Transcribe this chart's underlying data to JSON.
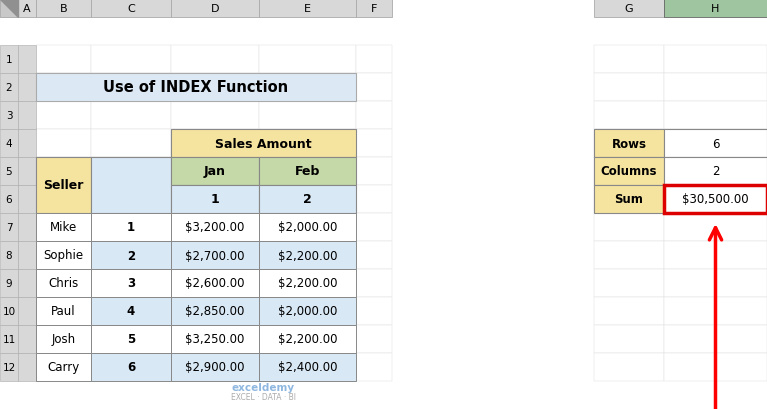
{
  "title": "Use of INDEX Function",
  "col_headers": [
    "A",
    "B",
    "C",
    "D",
    "E",
    "F",
    "G",
    "H"
  ],
  "sellers": [
    "Mike",
    "Sophie",
    "Chris",
    "Paul",
    "Josh",
    "Carry"
  ],
  "row_nums": [
    "1",
    "2",
    "3",
    "4",
    "5",
    "6"
  ],
  "jan_vals": [
    "$3,200.00",
    "$2,700.00",
    "$2,600.00",
    "$2,850.00",
    "$3,250.00",
    "$2,900.00"
  ],
  "feb_vals": [
    "$2,000.00",
    "$2,200.00",
    "$2,200.00",
    "$2,000.00",
    "$2,200.00",
    "$2,400.00"
  ],
  "side_labels": [
    "Rows",
    "Columns",
    "Sum"
  ],
  "side_vals": [
    "6",
    "2",
    "$30,500.00"
  ],
  "color_title_bg": "#dce9f5",
  "color_seller_header": "#f5e4a0",
  "color_sales_header": "#f5e4a0",
  "color_month_header": "#c5d9a8",
  "color_number_row": "#d9e8f5",
  "color_data_white": "#ffffff",
  "color_data_blue": "#d9e8f5",
  "color_side_label": "#f5e4a0",
  "color_side_val": "#ffffff",
  "color_sum_border": "#dd0000",
  "color_col_header_bg": "#d8d8d8",
  "color_row_header_bg": "#d8d8d8",
  "color_H_header_bg": "#9fc4a0",
  "color_border": "#888888",
  "color_light_border": "#bbbbbb",
  "bg_color": "#ffffff",
  "watermark": "exceldemy\nEXCEL · DATA · BI"
}
